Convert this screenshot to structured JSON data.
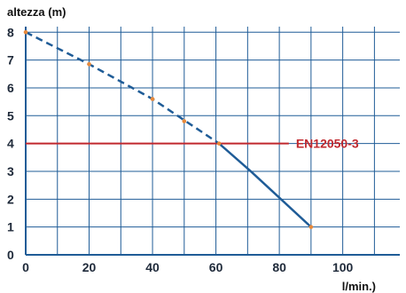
{
  "chart_data": {
    "type": "line",
    "title": "",
    "ylabel": "altezza (m)",
    "xlabel": "l/min.)",
    "xlim": [
      0,
      118
    ],
    "ylim": [
      0,
      8.2
    ],
    "x_ticks": [
      0,
      20,
      40,
      60,
      80,
      100
    ],
    "y_ticks": [
      0,
      1,
      2,
      3,
      4,
      5,
      6,
      7,
      8
    ],
    "grid": true,
    "series": [
      {
        "name": "",
        "color": "#1f5c97",
        "segments": [
          {
            "style": "dashed",
            "x": [
              0,
              20,
              40,
              61
            ],
            "y": [
              8.0,
              6.85,
              5.6,
              4.0
            ]
          },
          {
            "style": "solid",
            "x": [
              61,
              71,
              90
            ],
            "y": [
              4.0,
              3.0,
              1.0
            ]
          }
        ],
        "markers": {
          "color": "#e8893a",
          "x": [
            0,
            20,
            40,
            50,
            61,
            90
          ],
          "y": [
            8.0,
            6.85,
            5.6,
            4.8,
            4.0,
            1.0
          ]
        }
      }
    ],
    "annotations": [
      {
        "type": "hline",
        "y": 4,
        "x_start": 0,
        "x_end": 83,
        "color": "#c0282e",
        "label": "EN12050-3"
      }
    ],
    "colors": {
      "grid": "#1f5c97",
      "axis": "#1f5c97",
      "tick_text": "#1f2a3a"
    }
  }
}
